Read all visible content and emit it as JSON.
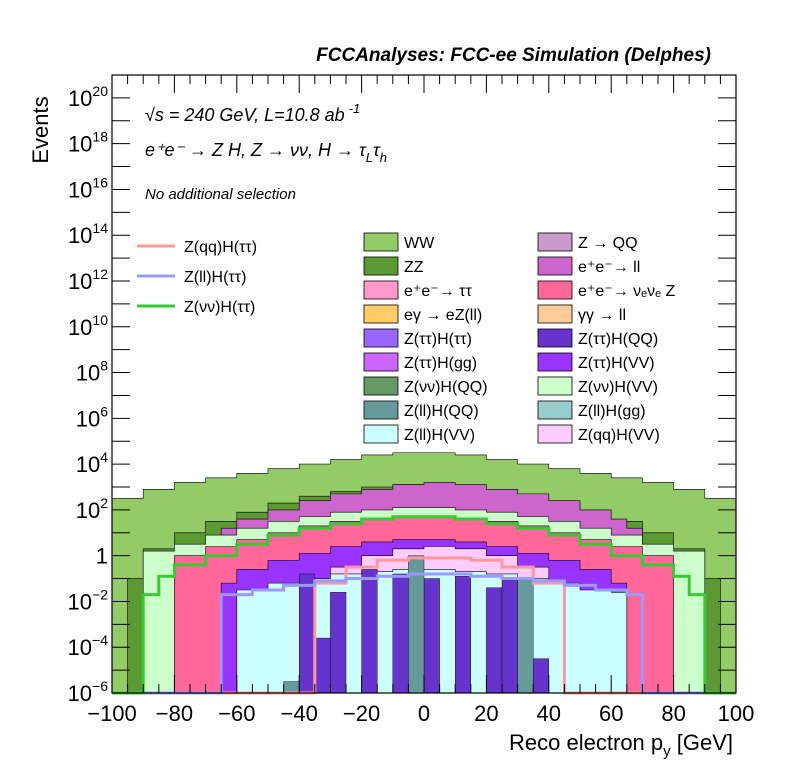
{
  "chart_data": {
    "type": "histogram",
    "header": "FCCAnalyses: FCC-ee Simulation (Delphes)",
    "xlabel": "Reco electron p",
    "xlabel_sub": "y",
    "xlabel_unit": " [GeV]",
    "ylabel": "Events",
    "xlim": [
      -100,
      100
    ],
    "ylim_log10": [
      -6,
      21
    ],
    "log_y": true,
    "x_ticks": [
      {
        "v": -100,
        "label": "−100"
      },
      {
        "v": -80,
        "label": "−80"
      },
      {
        "v": -60,
        "label": "−60"
      },
      {
        "v": -40,
        "label": "−40"
      },
      {
        "v": -20,
        "label": "−20"
      },
      {
        "v": 0,
        "label": "0"
      },
      {
        "v": 20,
        "label": "20"
      },
      {
        "v": 40,
        "label": "40"
      },
      {
        "v": 60,
        "label": "60"
      },
      {
        "v": 80,
        "label": "80"
      },
      {
        "v": 100,
        "label": "100"
      }
    ],
    "y_ticks": [
      {
        "e": 20,
        "base": "10",
        "exp": "20"
      },
      {
        "e": 18,
        "base": "10",
        "exp": "18"
      },
      {
        "e": 16,
        "base": "10",
        "exp": "16"
      },
      {
        "e": 14,
        "base": "10",
        "exp": "14"
      },
      {
        "e": 12,
        "base": "10",
        "exp": "12"
      },
      {
        "e": 10,
        "base": "10",
        "exp": "10"
      },
      {
        "e": 8,
        "base": "10",
        "exp": "8"
      },
      {
        "e": 6,
        "base": "10",
        "exp": "6"
      },
      {
        "e": 4,
        "base": "10",
        "exp": "4"
      },
      {
        "e": 2,
        "base": "10",
        "exp": "2"
      },
      {
        "e": 0,
        "base": "1",
        "exp": ""
      },
      {
        "e": -2,
        "base": "10",
        "exp": "−2"
      },
      {
        "e": -4,
        "base": "10",
        "exp": "−4"
      },
      {
        "e": -6,
        "base": "10",
        "exp": "−6"
      }
    ],
    "annotations": {
      "energy": "√s = 240 GeV, L=10.8 ab",
      "energy_exp": "-1",
      "process": "e⁺e⁻ → Z H, Z → νν, H → τ",
      "process_sub1": "L",
      "process_tau": "τ",
      "process_sub2": "h",
      "selection": "No additional selection"
    },
    "stack_envelopes": [
      {
        "name": "WW",
        "color": "#93cc66",
        "bins": [
          [
            -100,
            2.5
          ],
          [
            -90,
            2.9
          ],
          [
            -80,
            3.2
          ],
          [
            -70,
            3.4
          ],
          [
            -60,
            3.6
          ],
          [
            -50,
            3.8
          ],
          [
            -40,
            4.0
          ],
          [
            -30,
            4.2
          ],
          [
            -20,
            4.4
          ],
          [
            -10,
            4.5
          ],
          [
            0,
            4.5
          ],
          [
            10,
            4.4
          ],
          [
            20,
            4.2
          ],
          [
            30,
            4.0
          ],
          [
            40,
            3.8
          ],
          [
            50,
            3.6
          ],
          [
            60,
            3.4
          ],
          [
            70,
            3.2
          ],
          [
            80,
            2.9
          ],
          [
            90,
            2.5
          ],
          [
            100,
            2.5
          ]
        ]
      },
      {
        "name": "ZZ",
        "color": "#5c9933",
        "bins": [
          [
            -100,
            -6
          ],
          [
            -95,
            -1
          ],
          [
            -90,
            0.3
          ],
          [
            -80,
            1.0
          ],
          [
            -70,
            1.5
          ],
          [
            -60,
            1.9
          ],
          [
            -50,
            2.3
          ],
          [
            -40,
            2.6
          ],
          [
            -30,
            2.8
          ],
          [
            -20,
            3.0
          ],
          [
            -10,
            3.1
          ],
          [
            0,
            3.1
          ],
          [
            10,
            3.0
          ],
          [
            20,
            2.8
          ],
          [
            30,
            2.6
          ],
          [
            40,
            2.3
          ],
          [
            50,
            1.9
          ],
          [
            60,
            1.5
          ],
          [
            70,
            1.0
          ],
          [
            80,
            0.3
          ],
          [
            90,
            -1
          ],
          [
            95,
            -6
          ],
          [
            100,
            -6
          ]
        ]
      },
      {
        "name": "e+e- → ll",
        "color": "#cc66cc",
        "bins": [
          [
            -100,
            -6
          ],
          [
            -70,
            -6
          ],
          [
            -65,
            1.2
          ],
          [
            -60,
            1.6
          ],
          [
            -50,
            2.0
          ],
          [
            -40,
            2.4
          ],
          [
            -30,
            2.7
          ],
          [
            -20,
            2.9
          ],
          [
            -10,
            3.1
          ],
          [
            0,
            3.2
          ],
          [
            10,
            3.1
          ],
          [
            20,
            2.9
          ],
          [
            30,
            2.7
          ],
          [
            40,
            2.4
          ],
          [
            50,
            2.0
          ],
          [
            60,
            1.6
          ],
          [
            65,
            1.2
          ],
          [
            70,
            -6
          ],
          [
            100,
            -6
          ]
        ]
      },
      {
        "name": "Z(νν)H(VV)",
        "color": "#ccffcc",
        "bins": [
          [
            -100,
            -6
          ],
          [
            -90,
            0.2
          ],
          [
            -80,
            0.5
          ],
          [
            -70,
            0.9
          ],
          [
            -60,
            1.2
          ],
          [
            -50,
            1.5
          ],
          [
            -40,
            1.7
          ],
          [
            -30,
            1.9
          ],
          [
            -20,
            2.0
          ],
          [
            -10,
            2.1
          ],
          [
            0,
            2.1
          ],
          [
            10,
            2.0
          ],
          [
            20,
            1.9
          ],
          [
            30,
            1.7
          ],
          [
            40,
            1.5
          ],
          [
            50,
            1.2
          ],
          [
            60,
            0.9
          ],
          [
            70,
            0.5
          ],
          [
            80,
            0.2
          ],
          [
            90,
            -6
          ],
          [
            100,
            -6
          ]
        ]
      },
      {
        "name": "e+e- → νeνe Z",
        "color": "#ff6699",
        "bins": [
          [
            -100,
            -6
          ],
          [
            -80,
            0.0
          ],
          [
            -70,
            0.4
          ],
          [
            -60,
            0.7
          ],
          [
            -50,
            1.0
          ],
          [
            -40,
            1.3
          ],
          [
            -30,
            1.5
          ],
          [
            -20,
            1.6
          ],
          [
            -10,
            1.7
          ],
          [
            0,
            1.7
          ],
          [
            10,
            1.6
          ],
          [
            20,
            1.5
          ],
          [
            30,
            1.3
          ],
          [
            40,
            1.0
          ],
          [
            50,
            0.7
          ],
          [
            60,
            0.4
          ],
          [
            70,
            0.0
          ],
          [
            80,
            -6
          ],
          [
            100,
            -6
          ]
        ]
      },
      {
        "name": "Z(ττ)H(VV)",
        "color": "#9933ff",
        "bins": [
          [
            -100,
            -6
          ],
          [
            -70,
            -6
          ],
          [
            -65,
            -1.2
          ],
          [
            -60,
            -0.6
          ],
          [
            -50,
            -0.2
          ],
          [
            -40,
            0.1
          ],
          [
            -30,
            0.4
          ],
          [
            -20,
            0.6
          ],
          [
            -10,
            0.7
          ],
          [
            0,
            0.7
          ],
          [
            10,
            0.6
          ],
          [
            20,
            0.4
          ],
          [
            30,
            0.1
          ],
          [
            40,
            -0.2
          ],
          [
            50,
            -0.6
          ],
          [
            60,
            -1.2
          ],
          [
            65,
            -6
          ],
          [
            100,
            -6
          ]
        ]
      },
      {
        "name": "Z(qq)H(VV)",
        "color": "#ffccff",
        "bins": [
          [
            -100,
            -6
          ],
          [
            -40,
            -6
          ],
          [
            -30,
            -0.5
          ],
          [
            -20,
            0.0
          ],
          [
            -10,
            0.3
          ],
          [
            0,
            0.4
          ],
          [
            10,
            0.3
          ],
          [
            20,
            0.0
          ],
          [
            30,
            -0.5
          ],
          [
            40,
            -6
          ],
          [
            100,
            -6
          ]
        ]
      },
      {
        "name": "Z(ll)H(VV)",
        "color": "#ccffff",
        "bins": [
          [
            -100,
            -6
          ],
          [
            -65,
            -6
          ],
          [
            -60,
            -1.5
          ],
          [
            -50,
            -1.2
          ],
          [
            -40,
            -1.0
          ],
          [
            -30,
            -0.8
          ],
          [
            -20,
            -0.7
          ],
          [
            -10,
            -0.6
          ],
          [
            0,
            -0.6
          ],
          [
            10,
            -0.7
          ],
          [
            20,
            -0.8
          ],
          [
            30,
            -1.0
          ],
          [
            40,
            -1.2
          ],
          [
            50,
            -1.5
          ],
          [
            60,
            -1.6
          ],
          [
            65,
            -6
          ],
          [
            100,
            -6
          ]
        ]
      }
    ],
    "overlays": [
      {
        "name": "Z(qq)H(ττ)",
        "color": "#ff9999",
        "bins": [
          [
            -100,
            -6
          ],
          [
            -40,
            -6
          ],
          [
            -35,
            -1.2
          ],
          [
            -25,
            -0.5
          ],
          [
            -15,
            -0.2
          ],
          [
            -5,
            -0.1
          ],
          [
            5,
            -0.1
          ],
          [
            15,
            -0.2
          ],
          [
            25,
            -0.5
          ],
          [
            35,
            -1.2
          ],
          [
            45,
            -6
          ],
          [
            100,
            -6
          ]
        ]
      },
      {
        "name": "Z(ll)H(ττ)",
        "color": "#9999ff",
        "bins": [
          [
            -100,
            -6
          ],
          [
            -70,
            -6
          ],
          [
            -65,
            -1.7
          ],
          [
            -55,
            -1.5
          ],
          [
            -45,
            -1.3
          ],
          [
            -35,
            -1.1
          ],
          [
            -25,
            -1.0
          ],
          [
            -15,
            -0.9
          ],
          [
            -5,
            -0.8
          ],
          [
            5,
            -0.8
          ],
          [
            15,
            -0.9
          ],
          [
            25,
            -1.0
          ],
          [
            35,
            -1.1
          ],
          [
            45,
            -1.3
          ],
          [
            55,
            -1.5
          ],
          [
            65,
            -1.7
          ],
          [
            70,
            -6
          ],
          [
            100,
            -6
          ]
        ]
      },
      {
        "name": "Z(νν)H(ττ)",
        "color": "#33cc33",
        "bins": [
          [
            -100,
            -6
          ],
          [
            -95,
            -6
          ],
          [
            -90,
            -1.7
          ],
          [
            -85,
            -0.9
          ],
          [
            -80,
            -0.4
          ],
          [
            -70,
            0.0
          ],
          [
            -60,
            0.5
          ],
          [
            -50,
            0.9
          ],
          [
            -40,
            1.2
          ],
          [
            -30,
            1.4
          ],
          [
            -20,
            1.6
          ],
          [
            -10,
            1.7
          ],
          [
            0,
            1.7
          ],
          [
            10,
            1.6
          ],
          [
            20,
            1.4
          ],
          [
            30,
            1.2
          ],
          [
            40,
            0.9
          ],
          [
            50,
            0.5
          ],
          [
            60,
            0.0
          ],
          [
            70,
            -0.4
          ],
          [
            80,
            -0.9
          ],
          [
            85,
            -1.7
          ],
          [
            90,
            -6
          ],
          [
            100,
            -6
          ]
        ]
      }
    ],
    "spikes": [
      {
        "name": "Z(ττ)H(QQ)",
        "color": "#6633cc",
        "bins": [
          [
            -40,
            -0.8
          ],
          [
            -30,
            -1.6
          ],
          [
            -20,
            -0.6
          ],
          [
            -10,
            -0.8
          ],
          [
            0,
            -1.0
          ],
          [
            10,
            -0.9
          ],
          [
            20,
            -1.4
          ],
          [
            25,
            -1.0
          ],
          [
            -35,
            -3.6
          ],
          [
            35,
            -4.5
          ]
        ]
      },
      {
        "name": "Z(ll)H(QQ)",
        "color": "#669999",
        "bins": [
          [
            -45,
            -5.5
          ],
          [
            -5,
            0.0
          ],
          [
            30,
            -1.0
          ]
        ]
      }
    ],
    "legend_left": [
      {
        "label": "Z(qq)H(ττ)",
        "color": "#ff9999"
      },
      {
        "label": "Z(ll)H(ττ)",
        "color": "#9999ff"
      },
      {
        "label": "Z(νν)H(ττ)",
        "color": "#33cc33"
      }
    ],
    "legend_boxes": [
      {
        "label": "WW",
        "color": "#93cc66"
      },
      {
        "label": "Z → QQ",
        "color": "#cc99cc"
      },
      {
        "label": "ZZ",
        "color": "#5c9933"
      },
      {
        "label": "e⁺e⁻→ ll",
        "color": "#cc66cc"
      },
      {
        "label": "e⁺e⁻→ ττ",
        "color": "#ff99cc"
      },
      {
        "label": "e⁺e⁻→ νₑνₑ Z",
        "color": "#ff6699"
      },
      {
        "label": "eγ → eZ(ll)",
        "color": "#ffcc66"
      },
      {
        "label": "γγ → ll",
        "color": "#ffcc99"
      },
      {
        "label": "Z(ττ)H(ττ)",
        "color": "#9966ff"
      },
      {
        "label": "Z(ττ)H(QQ)",
        "color": "#6633cc"
      },
      {
        "label": "Z(ττ)H(gg)",
        "color": "#cc66ff"
      },
      {
        "label": "Z(ττ)H(VV)",
        "color": "#9933ff"
      },
      {
        "label": "Z(νν)H(QQ)",
        "color": "#669966"
      },
      {
        "label": "Z(νν)H(VV)",
        "color": "#ccffcc"
      },
      {
        "label": "Z(ll)H(QQ)",
        "color": "#669999"
      },
      {
        "label": "Z(ll)H(gg)",
        "color": "#99cccc"
      },
      {
        "label": "Z(ll)H(VV)",
        "color": "#ccffff"
      },
      {
        "label": "Z(qq)H(VV)",
        "color": "#ffccff"
      }
    ]
  }
}
